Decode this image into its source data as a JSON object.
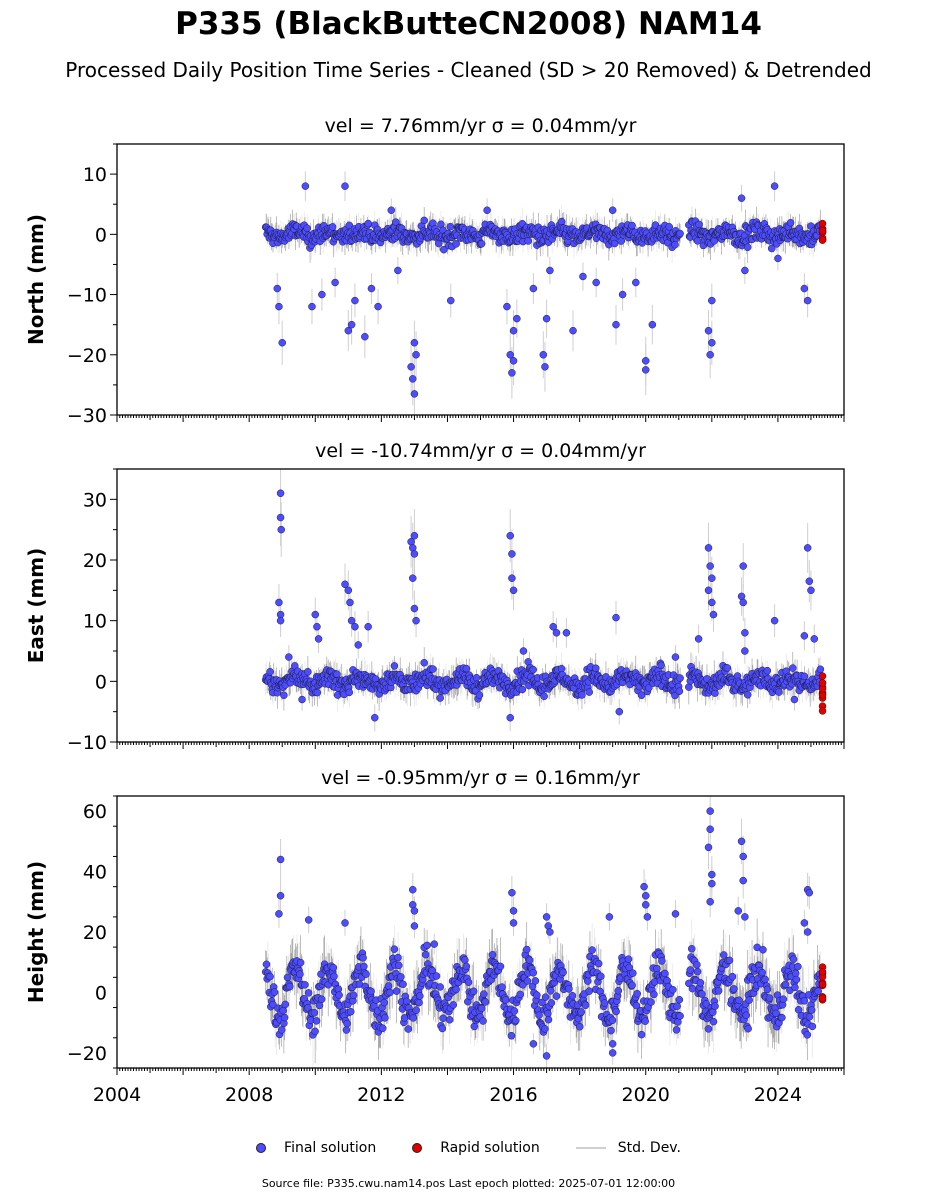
{
  "figure": {
    "title": "P335 (BlackButteCN2008) NAM14",
    "subtitle": "Processed Daily Position Time Series - Cleaned (SD > 20 Removed) & Detrended",
    "footer": "Source file: P335.cwu.nam14.pos  Last epoch plotted: 2025-07-01 12:00:00"
  },
  "legend": {
    "final_label": "Final solution",
    "rapid_label": "Rapid solution",
    "std_label": "Std. Dev."
  },
  "colors": {
    "final": "#4d4dff",
    "rapid": "#e00000",
    "std": "#cfcfcf",
    "std_dark": "#555555"
  },
  "chart_data": [
    {
      "type": "scatter",
      "title": "vel = 7.76mm/yr   σ = 0.04mm/yr",
      "ylabel": "North (mm)",
      "xlim": [
        2004,
        2026
      ],
      "ylim": [
        -30,
        15
      ],
      "yticks": [
        10,
        0,
        -10,
        -20,
        -30
      ],
      "xticks": [
        2004,
        2008,
        2012,
        2016,
        2020,
        2024
      ],
      "show_xtick_labels": false,
      "data_span": [
        2008.5,
        2025.3
      ],
      "rapid_span": [
        2025.2,
        2025.5
      ],
      "rapid_range": [
        -1,
        2
      ],
      "noise": {
        "amp": 1.5,
        "annual": 0.5
      },
      "outliers": [
        [
          2008.9,
          -12
        ],
        [
          2008.85,
          -9
        ],
        [
          2009.0,
          -18
        ],
        [
          2009.7,
          8
        ],
        [
          2009.9,
          -12
        ],
        [
          2010.2,
          -10
        ],
        [
          2010.6,
          -8
        ],
        [
          2010.9,
          8
        ],
        [
          2011.0,
          -16
        ],
        [
          2011.1,
          -15
        ],
        [
          2011.2,
          -11
        ],
        [
          2011.5,
          -17
        ],
        [
          2011.7,
          -9
        ],
        [
          2011.9,
          -12
        ],
        [
          2012.3,
          4
        ],
        [
          2012.5,
          -6
        ],
        [
          2012.9,
          -22
        ],
        [
          2012.95,
          -24
        ],
        [
          2013.0,
          -26.5
        ],
        [
          2013.0,
          -18
        ],
        [
          2013.05,
          -20
        ],
        [
          2014.1,
          -11
        ],
        [
          2015.2,
          4
        ],
        [
          2015.8,
          -12
        ],
        [
          2015.9,
          -20
        ],
        [
          2015.95,
          -23
        ],
        [
          2016.0,
          -16
        ],
        [
          2016.0,
          -21
        ],
        [
          2016.1,
          -14
        ],
        [
          2016.6,
          -9
        ],
        [
          2016.9,
          -20
        ],
        [
          2016.95,
          -22
        ],
        [
          2017.0,
          -14
        ],
        [
          2017.1,
          -6
        ],
        [
          2017.8,
          -16
        ],
        [
          2018.1,
          -7
        ],
        [
          2018.5,
          -8
        ],
        [
          2019.1,
          -15
        ],
        [
          2019.0,
          4
        ],
        [
          2019.3,
          -10
        ],
        [
          2019.7,
          -8
        ],
        [
          2020.0,
          -21
        ],
        [
          2020.0,
          -22.5
        ],
        [
          2020.2,
          -15
        ],
        [
          2021.9,
          -16
        ],
        [
          2021.95,
          -20
        ],
        [
          2022.0,
          -18
        ],
        [
          2022.0,
          -11
        ],
        [
          2022.9,
          6
        ],
        [
          2023.0,
          -6
        ],
        [
          2023.9,
          8
        ],
        [
          2024.0,
          -4
        ],
        [
          2024.8,
          -9
        ],
        [
          2024.9,
          -11
        ]
      ]
    },
    {
      "type": "scatter",
      "title": "vel = -10.74mm/yr   σ = 0.04mm/yr",
      "ylabel": "East (mm)",
      "xlim": [
        2004,
        2026
      ],
      "ylim": [
        -10,
        35
      ],
      "yticks": [
        30,
        20,
        10,
        0,
        -10
      ],
      "xticks": [
        2004,
        2008,
        2012,
        2016,
        2020,
        2024
      ],
      "show_xtick_labels": false,
      "data_span": [
        2008.5,
        2025.3
      ],
      "rapid_span": [
        2025.2,
        2025.5
      ],
      "rapid_range": [
        -5,
        1
      ],
      "noise": {
        "amp": 1.6,
        "annual": 0.8
      },
      "outliers": [
        [
          2008.95,
          31
        ],
        [
          2008.95,
          27
        ],
        [
          2008.97,
          25
        ],
        [
          2008.9,
          13
        ],
        [
          2008.95,
          11
        ],
        [
          2008.95,
          10
        ],
        [
          2009.2,
          4
        ],
        [
          2009.6,
          -3
        ],
        [
          2010.0,
          11
        ],
        [
          2010.05,
          9
        ],
        [
          2010.1,
          7
        ],
        [
          2010.9,
          16
        ],
        [
          2011.0,
          15
        ],
        [
          2011.05,
          13
        ],
        [
          2011.1,
          10
        ],
        [
          2011.2,
          9
        ],
        [
          2011.3,
          6
        ],
        [
          2011.6,
          9
        ],
        [
          2011.8,
          -6
        ],
        [
          2012.9,
          23
        ],
        [
          2012.95,
          22
        ],
        [
          2013.0,
          21
        ],
        [
          2013.0,
          24
        ],
        [
          2012.95,
          17
        ],
        [
          2013.0,
          12
        ],
        [
          2013.05,
          10
        ],
        [
          2015.9,
          24
        ],
        [
          2015.95,
          21
        ],
        [
          2015.95,
          17
        ],
        [
          2016.0,
          15
        ],
        [
          2015.9,
          -6
        ],
        [
          2016.3,
          5
        ],
        [
          2017.2,
          9
        ],
        [
          2017.3,
          8
        ],
        [
          2017.6,
          8
        ],
        [
          2019.1,
          10.5
        ],
        [
          2019.2,
          -5
        ],
        [
          2020.9,
          4
        ],
        [
          2021.6,
          7
        ],
        [
          2021.9,
          22
        ],
        [
          2021.95,
          19
        ],
        [
          2022.0,
          17
        ],
        [
          2021.9,
          15
        ],
        [
          2022.0,
          13
        ],
        [
          2022.05,
          11
        ],
        [
          2022.95,
          19
        ],
        [
          2022.9,
          14
        ],
        [
          2022.95,
          13
        ],
        [
          2023.0,
          8
        ],
        [
          2023.0,
          5
        ],
        [
          2023.9,
          10
        ],
        [
          2024.9,
          22
        ],
        [
          2024.95,
          16.5
        ],
        [
          2025.0,
          15
        ],
        [
          2024.8,
          7.5
        ],
        [
          2025.1,
          7
        ],
        [
          2024.5,
          -3
        ]
      ]
    },
    {
      "type": "scatter",
      "title": "vel = -0.95mm/yr   σ = 0.16mm/yr",
      "ylabel": "Height (mm)",
      "xlim": [
        2004,
        2026
      ],
      "ylim": [
        -25,
        65
      ],
      "yticks": [
        60,
        40,
        20,
        0,
        -20
      ],
      "xticks": [
        2004,
        2008,
        2012,
        2016,
        2020,
        2024
      ],
      "show_xtick_labels": true,
      "data_span": [
        2008.5,
        2025.3
      ],
      "rapid_span": [
        2025.2,
        2025.5
      ],
      "rapid_range": [
        -5,
        10
      ],
      "noise": {
        "amp": 6,
        "annual": 8
      },
      "outliers": [
        [
          2008.95,
          44
        ],
        [
          2008.95,
          32
        ],
        [
          2008.9,
          26
        ],
        [
          2009.8,
          24
        ],
        [
          2010.9,
          23
        ],
        [
          2012.95,
          34
        ],
        [
          2012.95,
          29
        ],
        [
          2013.0,
          27
        ],
        [
          2013.0,
          22
        ],
        [
          2013.6,
          16
        ],
        [
          2015.95,
          33
        ],
        [
          2016.0,
          27
        ],
        [
          2016.0,
          23
        ],
        [
          2017.0,
          25
        ],
        [
          2017.05,
          22
        ],
        [
          2017.1,
          20
        ],
        [
          2018.9,
          25
        ],
        [
          2019.0,
          -20
        ],
        [
          2019.0,
          -17
        ],
        [
          2019.95,
          35
        ],
        [
          2020.0,
          32
        ],
        [
          2020.0,
          29
        ],
        [
          2020.05,
          25
        ],
        [
          2020.9,
          26
        ],
        [
          2021.95,
          60
        ],
        [
          2021.95,
          54
        ],
        [
          2021.9,
          48
        ],
        [
          2022.0,
          39
        ],
        [
          2022.0,
          36
        ],
        [
          2021.95,
          30
        ],
        [
          2022.9,
          50
        ],
        [
          2022.95,
          45
        ],
        [
          2022.95,
          37
        ],
        [
          2022.8,
          27
        ],
        [
          2023.0,
          25
        ],
        [
          2024.9,
          34
        ],
        [
          2024.95,
          33
        ],
        [
          2024.8,
          23
        ],
        [
          2024.9,
          20
        ],
        [
          2023.1,
          -12
        ],
        [
          2016.6,
          -17
        ],
        [
          2017.0,
          -21
        ]
      ]
    }
  ]
}
